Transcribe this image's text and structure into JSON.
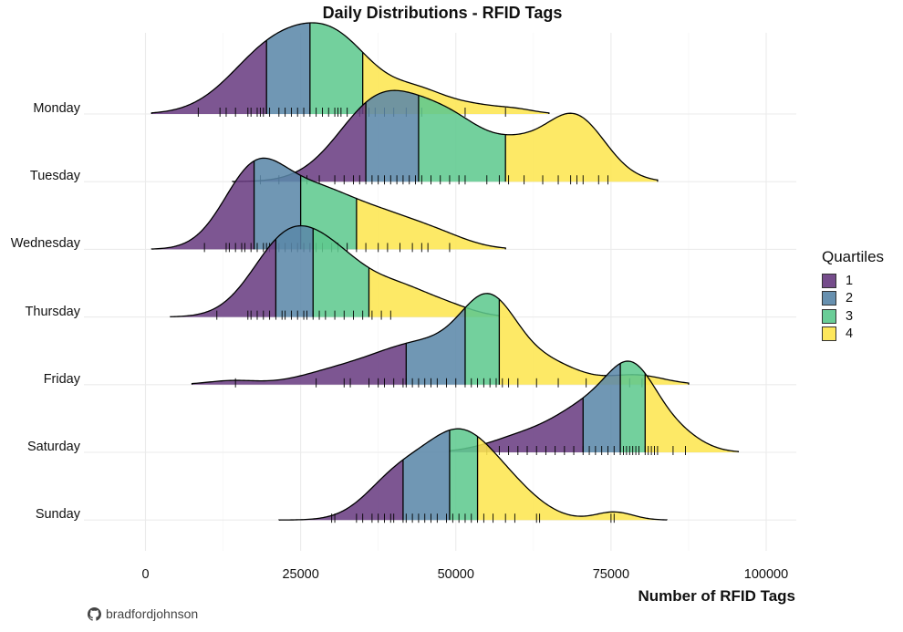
{
  "chart_data": {
    "type": "ridgeline",
    "title": "Daily Distributions - RFID Tags",
    "xlabel": "Number of RFID Tags",
    "ylabel": "",
    "xlim": [
      -10000,
      105000
    ],
    "x_ticks": [
      0,
      25000,
      50000,
      75000,
      100000
    ],
    "x_tick_labels": [
      "0",
      "25000",
      "50000",
      "75000",
      "100000"
    ],
    "grid": true,
    "legend": {
      "title": "Quartiles",
      "placement": "right",
      "entries": [
        "1",
        "2",
        "3",
        "4"
      ],
      "colors": [
        "#6a3d82",
        "#5b87a9",
        "#5ec98f",
        "#fde64f"
      ]
    },
    "caption": "bradfordjohnson",
    "caption_icon": "github-icon",
    "days": [
      {
        "name": "Monday",
        "range": [
          1000,
          65000
        ],
        "quartiles": [
          19500,
          26500,
          35000
        ],
        "peaks": [
          {
            "center": 21000,
            "height": 1.0,
            "width": 7000
          },
          {
            "center": 31500,
            "height": 0.88,
            "width": 6000
          },
          {
            "center": 44000,
            "height": 0.3,
            "width": 4500
          },
          {
            "center": 53000,
            "height": 0.12,
            "width": 4500
          },
          {
            "center": 60000,
            "height": 0.05,
            "width": 3000
          }
        ],
        "rug": [
          8500,
          12000,
          13000,
          14500,
          16500,
          17000,
          18000,
          18500,
          19000,
          20000,
          21500,
          22500,
          23500,
          24500,
          25500,
          26500,
          27500,
          28500,
          29500,
          30500,
          31000,
          31500,
          32500,
          34500,
          36000,
          37000,
          38500,
          40000,
          42000,
          44500,
          51500,
          58000
        ]
      },
      {
        "name": "Tuesday",
        "range": [
          14000,
          82500
        ],
        "quartiles": [
          35500,
          44000,
          58000
        ],
        "peaks": [
          {
            "center": 37500,
            "height": 0.82,
            "width": 6500
          },
          {
            "center": 49500,
            "height": 0.6,
            "width": 6500
          },
          {
            "center": 69000,
            "height": 0.7,
            "width": 5000
          },
          {
            "center": 60000,
            "height": 0.2,
            "width": 4000
          }
        ],
        "rug": [
          18500,
          21500,
          26000,
          28000,
          30500,
          32000,
          33500,
          34500,
          35500,
          36500,
          37500,
          38500,
          39500,
          40500,
          41500,
          42500,
          43500,
          44500,
          46000,
          47500,
          49000,
          50500,
          51500,
          55000,
          57000,
          58500,
          61000,
          64000,
          66500,
          68500,
          69500,
          70500,
          73000,
          74500
        ]
      },
      {
        "name": "Wednesday",
        "range": [
          1000,
          58000
        ],
        "quartiles": [
          17500,
          25000,
          34000
        ],
        "peaks": [
          {
            "center": 17500,
            "height": 1.0,
            "width": 5000
          },
          {
            "center": 27500,
            "height": 0.68,
            "width": 6000
          },
          {
            "center": 38500,
            "height": 0.38,
            "width": 6000
          },
          {
            "center": 47500,
            "height": 0.14,
            "width": 5000
          }
        ],
        "rug": [
          9500,
          13000,
          13500,
          14500,
          15500,
          16000,
          17000,
          18000,
          19000,
          19500,
          20000,
          21500,
          22500,
          23500,
          24500,
          25500,
          26500,
          27500,
          28500,
          30000,
          31000,
          32500,
          34000,
          35500,
          37500,
          39000,
          41000,
          43000,
          44500,
          45500,
          49000
        ]
      },
      {
        "name": "Thursday",
        "range": [
          4000,
          57000
        ],
        "quartiles": [
          21000,
          27000,
          36000
        ],
        "peaks": [
          {
            "center": 22500,
            "height": 1.0,
            "width": 5500
          },
          {
            "center": 31000,
            "height": 0.68,
            "width": 5500
          },
          {
            "center": 41500,
            "height": 0.35,
            "width": 5000
          },
          {
            "center": 49500,
            "height": 0.1,
            "width": 4000
          }
        ],
        "rug": [
          11500,
          16500,
          17000,
          18000,
          19000,
          20000,
          21000,
          22000,
          22500,
          23500,
          24500,
          25500,
          26000,
          27000,
          28000,
          29000,
          30500,
          32000,
          33500,
          35000,
          36500,
          38000,
          39500
        ]
      },
      {
        "name": "Friday",
        "range": [
          7500,
          87500
        ],
        "quartiles": [
          42000,
          51500,
          57000
        ],
        "peaks": [
          {
            "center": 44500,
            "height": 0.52,
            "width": 8000
          },
          {
            "center": 55500,
            "height": 0.9,
            "width": 4500
          },
          {
            "center": 65000,
            "height": 0.25,
            "width": 5000
          },
          {
            "center": 79000,
            "height": 0.12,
            "width": 4500
          },
          {
            "center": 14000,
            "height": 0.05,
            "width": 4000
          },
          {
            "center": 30000,
            "height": 0.12,
            "width": 6000
          }
        ],
        "rug": [
          14500,
          27500,
          32000,
          33000,
          36000,
          37500,
          38500,
          40000,
          41500,
          42000,
          43000,
          44000,
          45000,
          46000,
          47000,
          48500,
          50000,
          51500,
          52500,
          53500,
          54500,
          55500,
          56500,
          57500,
          58500,
          60000,
          63000,
          66500,
          71000,
          78000,
          80000
        ]
      },
      {
        "name": "Saturday",
        "range": [
          49000,
          95500
        ],
        "quartiles": [
          70500,
          76500,
          80500
        ],
        "peaks": [
          {
            "center": 62000,
            "height": 0.25,
            "width": 6000
          },
          {
            "center": 71500,
            "height": 0.55,
            "width": 5000
          },
          {
            "center": 78500,
            "height": 1.0,
            "width": 4000
          },
          {
            "center": 85500,
            "height": 0.25,
            "width": 4000
          }
        ],
        "rug": [
          53500,
          55000,
          57000,
          58500,
          60000,
          61500,
          63000,
          64500,
          66000,
          67500,
          69000,
          70500,
          71500,
          72500,
          73500,
          74500,
          75500,
          76500,
          77000,
          77500,
          78000,
          78500,
          79000,
          79500,
          80500,
          81000,
          81500,
          82000,
          82500,
          85000,
          87000
        ]
      },
      {
        "name": "Sunday",
        "range": [
          21500,
          84000
        ],
        "quartiles": [
          41500,
          49000,
          53500
        ],
        "peaks": [
          {
            "center": 50500,
            "height": 1.0,
            "width": 5500
          },
          {
            "center": 40500,
            "height": 0.5,
            "width": 5000
          },
          {
            "center": 59000,
            "height": 0.3,
            "width": 5000
          },
          {
            "center": 75500,
            "height": 0.1,
            "width": 3000
          }
        ],
        "rug": [
          30000,
          30500,
          34000,
          35000,
          36500,
          37500,
          38500,
          39500,
          40000,
          41500,
          42000,
          43000,
          44000,
          45000,
          46000,
          47000,
          48500,
          49500,
          50500,
          51500,
          52500,
          53500,
          54500,
          56000,
          58000,
          59500,
          63000,
          63500,
          75000,
          75500
        ]
      }
    ]
  }
}
